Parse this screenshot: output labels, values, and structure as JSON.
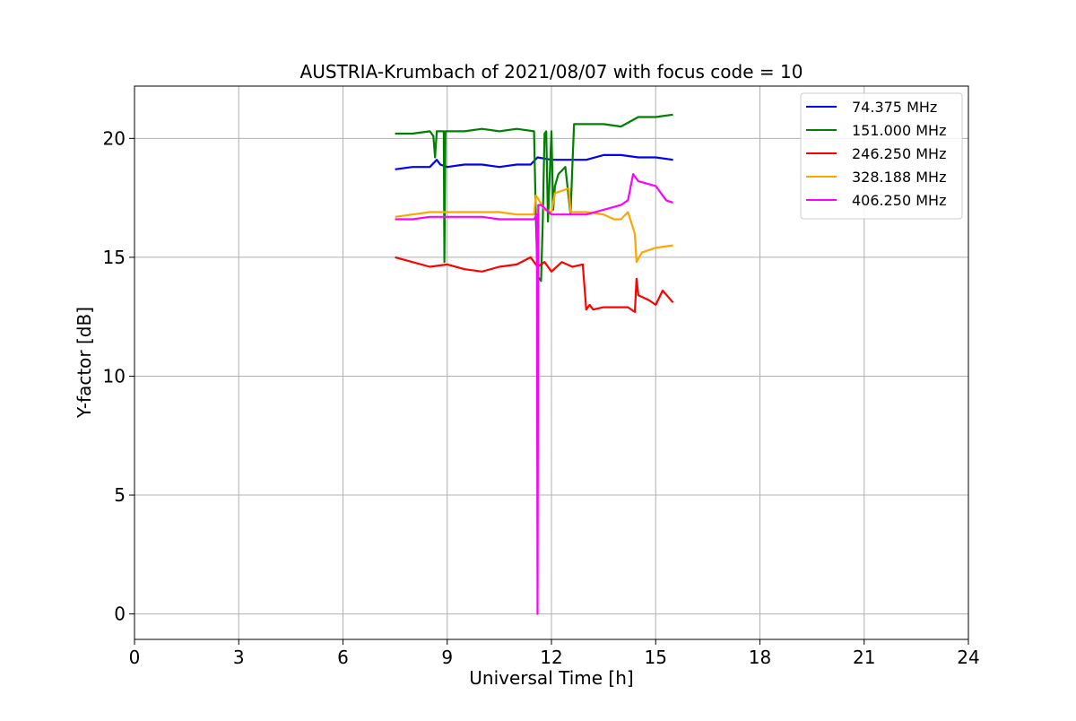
{
  "chart_data": {
    "type": "line",
    "title": "AUSTRIA-Krumbach of 2021/08/07 with focus code = 10",
    "xlabel": "Universal Time [h]",
    "ylabel": "Y-factor [dB]",
    "xlim": [
      0,
      24
    ],
    "ylim": [
      -1.07,
      22.2
    ],
    "xticks": [
      0,
      3,
      6,
      9,
      12,
      15,
      18,
      21,
      24
    ],
    "yticks": [
      0,
      5,
      10,
      15,
      20
    ],
    "grid": true,
    "legend_position": "top-right",
    "series": [
      {
        "name": " 74.375 MHz",
        "color": "#0000ff",
        "x": [
          7.5,
          8.0,
          8.5,
          8.7,
          8.8,
          9.0,
          9.5,
          10.0,
          10.5,
          11.0,
          11.4,
          11.6,
          12.0,
          12.5,
          13.0,
          13.5,
          14.0,
          14.5,
          15.0,
          15.5
        ],
        "y": [
          18.7,
          18.8,
          18.8,
          19.1,
          18.9,
          18.8,
          18.9,
          18.9,
          18.8,
          18.9,
          18.9,
          19.2,
          19.1,
          19.1,
          19.1,
          19.3,
          19.3,
          19.2,
          19.2,
          19.1
        ]
      },
      {
        "name": "151.000 MHz",
        "color": "#008000",
        "x": [
          7.5,
          8.0,
          8.5,
          8.6,
          8.65,
          8.7,
          8.9,
          8.92,
          8.95,
          9.0,
          9.5,
          10.0,
          10.5,
          11.0,
          11.5,
          11.55,
          11.6,
          11.7,
          11.75,
          11.8,
          11.85,
          11.9,
          12.0,
          12.05,
          12.1,
          12.2,
          12.4,
          12.55,
          12.6,
          12.65,
          13.0,
          13.5,
          14.0,
          14.5,
          15.0,
          15.5
        ],
        "y": [
          20.2,
          20.2,
          20.3,
          20.1,
          19.2,
          20.3,
          20.3,
          14.8,
          20.3,
          20.3,
          20.3,
          20.4,
          20.3,
          20.4,
          20.3,
          16.7,
          14.2,
          14.0,
          16.5,
          20.2,
          20.3,
          16.5,
          20.3,
          17.0,
          18.0,
          18.5,
          18.8,
          16.8,
          18.8,
          20.6,
          20.6,
          20.6,
          20.5,
          20.9,
          20.9,
          21.0
        ]
      },
      {
        "name": "246.250 MHz",
        "color": "#ff0000",
        "x": [
          7.5,
          8.0,
          8.5,
          9.0,
          9.5,
          10.0,
          10.5,
          11.0,
          11.4,
          11.5,
          11.6,
          11.8,
          12.0,
          12.3,
          12.6,
          12.9,
          13.0,
          13.1,
          13.2,
          13.5,
          13.8,
          14.2,
          14.4,
          14.45,
          14.5,
          14.8,
          15.0,
          15.2,
          15.5
        ],
        "y": [
          15.0,
          14.8,
          14.6,
          14.7,
          14.5,
          14.4,
          14.6,
          14.7,
          15.0,
          14.8,
          14.6,
          14.8,
          14.4,
          14.8,
          14.6,
          14.7,
          12.8,
          13.0,
          12.8,
          12.9,
          12.9,
          12.9,
          12.7,
          14.1,
          13.4,
          13.2,
          13.0,
          13.6,
          13.1
        ]
      },
      {
        "name": "328.188 MHz",
        "color": "#ffa500",
        "x": [
          7.5,
          8.0,
          8.5,
          9.0,
          9.5,
          10.0,
          10.5,
          11.0,
          11.5,
          11.55,
          11.6,
          11.8,
          12.0,
          12.1,
          12.5,
          12.55,
          13.0,
          13.5,
          13.8,
          14.0,
          14.2,
          14.4,
          14.45,
          14.6,
          15.0,
          15.5
        ],
        "y": [
          16.7,
          16.8,
          16.9,
          16.9,
          16.9,
          16.9,
          16.9,
          16.8,
          16.8,
          17.6,
          17.5,
          17.0,
          16.9,
          17.7,
          17.9,
          16.9,
          16.9,
          16.8,
          16.6,
          16.6,
          16.9,
          16.0,
          14.8,
          15.2,
          15.4,
          15.5
        ]
      },
      {
        "name": "406.250 MHz",
        "color": "#ff00ff",
        "x": [
          7.5,
          8.0,
          8.5,
          9.0,
          9.5,
          10.0,
          10.5,
          11.0,
          11.5,
          11.58,
          11.6,
          11.62,
          11.7,
          12.0,
          12.5,
          13.0,
          13.5,
          14.0,
          14.2,
          14.35,
          14.5,
          15.0,
          15.3,
          15.5
        ],
        "y": [
          16.6,
          16.6,
          16.7,
          16.7,
          16.7,
          16.7,
          16.6,
          16.6,
          16.6,
          16.8,
          0.0,
          17.2,
          17.2,
          16.8,
          16.8,
          16.8,
          17.0,
          17.2,
          17.4,
          18.5,
          18.2,
          18.0,
          17.4,
          17.3
        ]
      }
    ]
  }
}
